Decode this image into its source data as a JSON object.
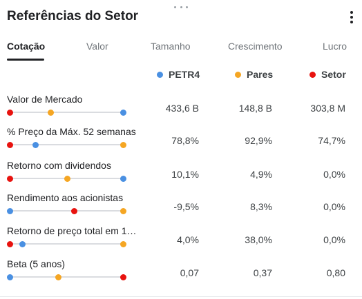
{
  "title": "Referências do Setor",
  "tabs": [
    "Cotação",
    "Valor",
    "Tamanho",
    "Crescimento",
    "Lucro"
  ],
  "legend": [
    {
      "label": "PETR4",
      "color": "#4a90e2"
    },
    {
      "label": "Pares",
      "color": "#f5a623"
    },
    {
      "label": "Setor",
      "color": "#e8130f"
    }
  ],
  "metrics": [
    {
      "label": "Valor de Mercado",
      "petr4": "433,6 B",
      "pares": "148,8 B",
      "setor": "303,8 M",
      "positions": {
        "petr4": 1.0,
        "pares": 0.36,
        "setor": 0.0
      }
    },
    {
      "label": "% Preço da Máx. 52 semanas",
      "petr4": "78,8%",
      "pares": "92,9%",
      "setor": "74,7%",
      "positions": {
        "petr4": 0.23,
        "pares": 1.0,
        "setor": 0.0
      }
    },
    {
      "label": "Retorno com dividendos",
      "petr4": "10,1%",
      "pares": "4,9%",
      "setor": "0,0%",
      "positions": {
        "petr4": 1.0,
        "pares": 0.51,
        "setor": 0.0
      }
    },
    {
      "label": "Rendimento aos acionistas",
      "petr4": "-9,5%",
      "pares": "8,3%",
      "setor": "0,0%",
      "positions": {
        "petr4": 0.0,
        "pares": 1.0,
        "setor": 0.57
      }
    },
    {
      "label": "Retorno de preço total em 1…",
      "petr4": "4,0%",
      "pares": "38,0%",
      "setor": "0,0%",
      "positions": {
        "petr4": 0.11,
        "pares": 1.0,
        "setor": 0.0
      }
    },
    {
      "label": "Beta (5 anos)",
      "petr4": "0,07",
      "pares": "0,37",
      "setor": "0,80",
      "positions": {
        "petr4": 0.0,
        "pares": 0.43,
        "setor": 1.0
      }
    }
  ]
}
